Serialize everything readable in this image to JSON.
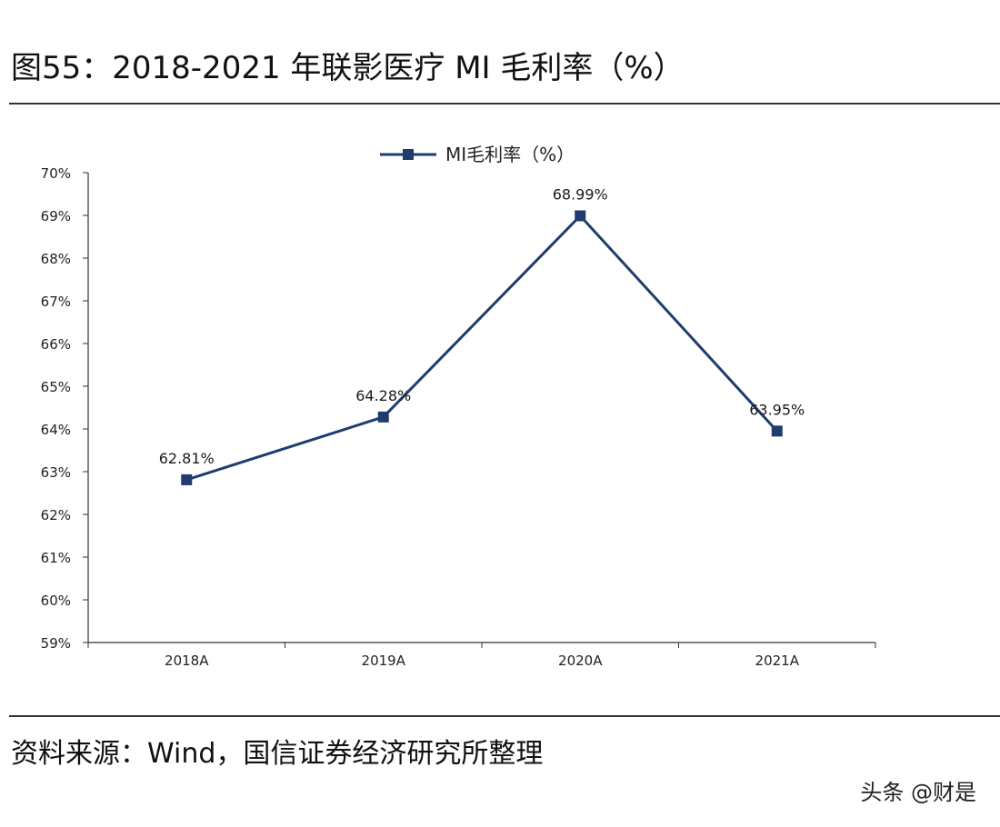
{
  "figure": {
    "title": "图55：2018-2021 年联影医疗 MI 毛利率（%）",
    "source": "资料来源：Wind，国信证券经济研究所整理",
    "watermark": "头条 @财是"
  },
  "chart_data": {
    "type": "line",
    "title": "",
    "xlabel": "",
    "ylabel": "",
    "categories": [
      "2018A",
      "2019A",
      "2020A",
      "2021A"
    ],
    "series": [
      {
        "name": "MI毛利率（%）",
        "values": [
          62.81,
          64.28,
          68.99,
          63.95
        ],
        "data_labels": [
          "62.81%",
          "64.28%",
          "68.99%",
          "63.95%"
        ],
        "color": "#1f3c6e",
        "marker": "square"
      }
    ],
    "ylim": [
      59,
      70
    ],
    "yticks": [
      59,
      60,
      61,
      62,
      63,
      64,
      65,
      66,
      67,
      68,
      69,
      70
    ],
    "ytick_labels": [
      "59%",
      "60%",
      "61%",
      "62%",
      "63%",
      "64%",
      "65%",
      "66%",
      "67%",
      "68%",
      "69%",
      "70%"
    ],
    "grid": false,
    "legend_position": "top-center",
    "colors": {
      "axis": "#333333",
      "tick_label": "#222222",
      "line": "#1f3c6e"
    }
  }
}
